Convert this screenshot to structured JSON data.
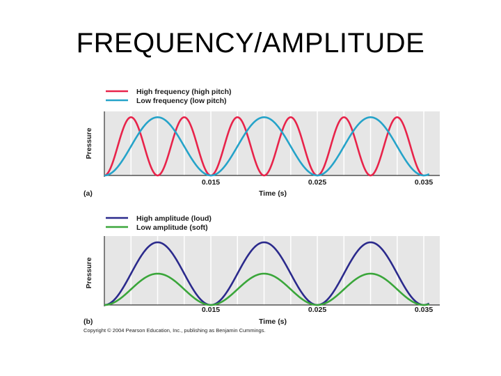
{
  "slide": {
    "title": "FREQUENCY/AMPLITUDE",
    "copyright": "Copyright © 2004 Pearson Education, Inc., publishing as Benjamin Cummings."
  },
  "chart_data": [
    {
      "type": "line",
      "panel_label": "(a)",
      "xlabel": "Time (s)",
      "ylabel": "Pressure",
      "xlim": [
        0.005,
        0.0365
      ],
      "ylim": [
        0,
        1.1
      ],
      "x_ticks": [
        0.015,
        0.025,
        0.035
      ],
      "x_tick_labels": [
        "0.015",
        "0.025",
        "0.035"
      ],
      "grid": true,
      "legend": "top-left",
      "series": [
        {
          "name": "High frequency (high pitch)",
          "color": "#e8234a",
          "frequency_hz": 200,
          "amplitude": 1.0,
          "x_start": 0.005,
          "x_end": 0.035
        },
        {
          "name": "Low frequency (low pitch)",
          "color": "#25a3c9",
          "frequency_hz": 100,
          "amplitude": 1.0,
          "x_start": 0.005,
          "x_end": 0.0355
        }
      ]
    },
    {
      "type": "line",
      "panel_label": "(b)",
      "xlabel": "Time (s)",
      "ylabel": "Pressure",
      "xlim": [
        0.005,
        0.0365
      ],
      "ylim": [
        0,
        1.1
      ],
      "x_ticks": [
        0.015,
        0.025,
        0.035
      ],
      "x_tick_labels": [
        "0.015",
        "0.025",
        "0.035"
      ],
      "grid": true,
      "legend": "top-left",
      "series": [
        {
          "name": "High amplitude (loud)",
          "color": "#2b2a8c",
          "frequency_hz": 100,
          "amplitude": 1.0,
          "x_start": 0.005,
          "x_end": 0.0355
        },
        {
          "name": "Low amplitude (soft)",
          "color": "#3aa63a",
          "frequency_hz": 100,
          "amplitude": 0.5,
          "x_start": 0.005,
          "x_end": 0.0355
        }
      ]
    }
  ]
}
